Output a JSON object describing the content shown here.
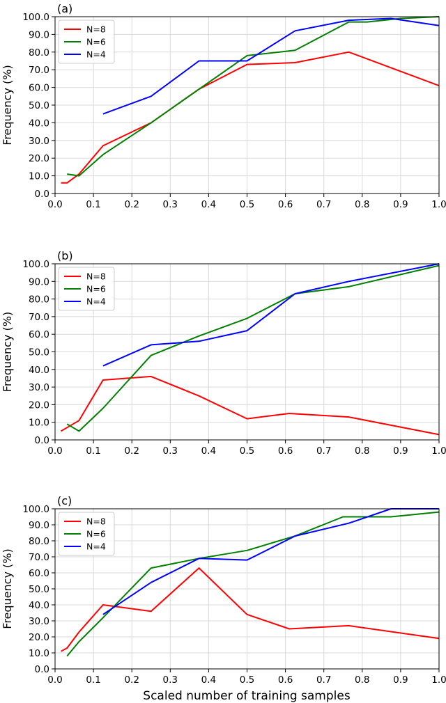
{
  "figure": {
    "xlabel": "Scaled number of training samples"
  },
  "colors": {
    "N=8": "#ff0000",
    "N=6": "#008000",
    "N=4": "#0000ff",
    "grid": "#d9d9d9"
  },
  "chart_data": [
    {
      "type": "line",
      "panel_label": "(a)",
      "ylabel": "Frequency (%)",
      "xlim": [
        0.0,
        1.0
      ],
      "ylim": [
        0.0,
        100.0
      ],
      "xticks": [
        "0.0",
        "0.1",
        "0.2",
        "0.3",
        "0.4",
        "0.5",
        "0.6",
        "0.7",
        "0.8",
        "0.9",
        "1.0"
      ],
      "yticks": [
        "0.0",
        "10.0",
        "20.0",
        "30.0",
        "40.0",
        "50.0",
        "60.0",
        "70.0",
        "80.0",
        "90.0",
        "100.0"
      ],
      "grid": true,
      "legend_position": "top-left",
      "series": [
        {
          "name": "N=8",
          "x": [
            0.0156,
            0.0312,
            0.0625,
            0.125,
            0.25,
            0.375,
            0.5,
            0.625,
            0.765,
            1.0
          ],
          "y": [
            6,
            6,
            11,
            27,
            40,
            59,
            73,
            74,
            80,
            61
          ]
        },
        {
          "name": "N=6",
          "x": [
            0.0312,
            0.0625,
            0.125,
            0.25,
            0.375,
            0.5,
            0.625,
            0.765,
            0.8125,
            0.9,
            1.0
          ],
          "y": [
            11,
            10,
            22,
            40,
            59,
            78,
            81,
            97,
            97,
            99,
            100
          ]
        },
        {
          "name": "N=4",
          "x": [
            0.125,
            0.25,
            0.375,
            0.5,
            0.625,
            0.765,
            0.875,
            1.0
          ],
          "y": [
            45,
            55,
            75,
            75,
            92,
            98,
            99,
            95
          ]
        }
      ]
    },
    {
      "type": "line",
      "panel_label": "(b)",
      "ylabel": "Frequency (%)",
      "xlim": [
        0.0,
        1.0
      ],
      "ylim": [
        0.0,
        100.0
      ],
      "xticks": [
        "0.0",
        "0.1",
        "0.2",
        "0.3",
        "0.4",
        "0.5",
        "0.6",
        "0.7",
        "0.8",
        "0.9",
        "1.0"
      ],
      "yticks": [
        "0.0",
        "10.0",
        "20.0",
        "30.0",
        "40.0",
        "50.0",
        "60.0",
        "70.0",
        "80.0",
        "90.0",
        "100.0"
      ],
      "grid": true,
      "legend_position": "top-left",
      "series": [
        {
          "name": "N=8",
          "x": [
            0.0156,
            0.0312,
            0.0625,
            0.125,
            0.25,
            0.375,
            0.5,
            0.61,
            0.765,
            1.0
          ],
          "y": [
            5,
            7,
            11,
            34,
            36,
            25,
            12,
            15,
            13,
            3
          ]
        },
        {
          "name": "N=6",
          "x": [
            0.0312,
            0.0625,
            0.125,
            0.25,
            0.375,
            0.5,
            0.625,
            0.765,
            1.0
          ],
          "y": [
            9,
            5,
            18,
            48,
            59,
            69,
            83,
            87,
            99
          ]
        },
        {
          "name": "N=4",
          "x": [
            0.125,
            0.25,
            0.375,
            0.5,
            0.625,
            0.765,
            1.0
          ],
          "y": [
            42,
            54,
            56,
            62,
            83,
            90,
            100
          ]
        }
      ]
    },
    {
      "type": "line",
      "panel_label": "(c)",
      "ylabel": "Frequency (%)",
      "xlim": [
        0.0,
        1.0
      ],
      "ylim": [
        0.0,
        100.0
      ],
      "xticks": [
        "0.0",
        "0.1",
        "0.2",
        "0.3",
        "0.4",
        "0.5",
        "0.6",
        "0.7",
        "0.8",
        "0.9",
        "1.0"
      ],
      "yticks": [
        "0.0",
        "10.0",
        "20.0",
        "30.0",
        "40.0",
        "50.0",
        "60.0",
        "70.0",
        "80.0",
        "90.0",
        "100.0"
      ],
      "grid": true,
      "legend_position": "top-left",
      "series": [
        {
          "name": "N=8",
          "x": [
            0.0156,
            0.0312,
            0.0625,
            0.125,
            0.25,
            0.375,
            0.5,
            0.61,
            0.765,
            1.0
          ],
          "y": [
            11,
            13,
            23,
            40,
            36,
            63,
            34,
            25,
            27,
            19
          ]
        },
        {
          "name": "N=6",
          "x": [
            0.0312,
            0.0625,
            0.125,
            0.25,
            0.375,
            0.5,
            0.625,
            0.75,
            0.875,
            1.0
          ],
          "y": [
            8,
            17,
            32,
            63,
            69,
            74,
            83,
            95,
            95,
            98
          ]
        },
        {
          "name": "N=4",
          "x": [
            0.125,
            0.25,
            0.375,
            0.5,
            0.625,
            0.765,
            0.875,
            1.0
          ],
          "y": [
            34,
            54,
            69,
            68,
            83,
            91,
            100,
            100
          ]
        }
      ]
    }
  ]
}
